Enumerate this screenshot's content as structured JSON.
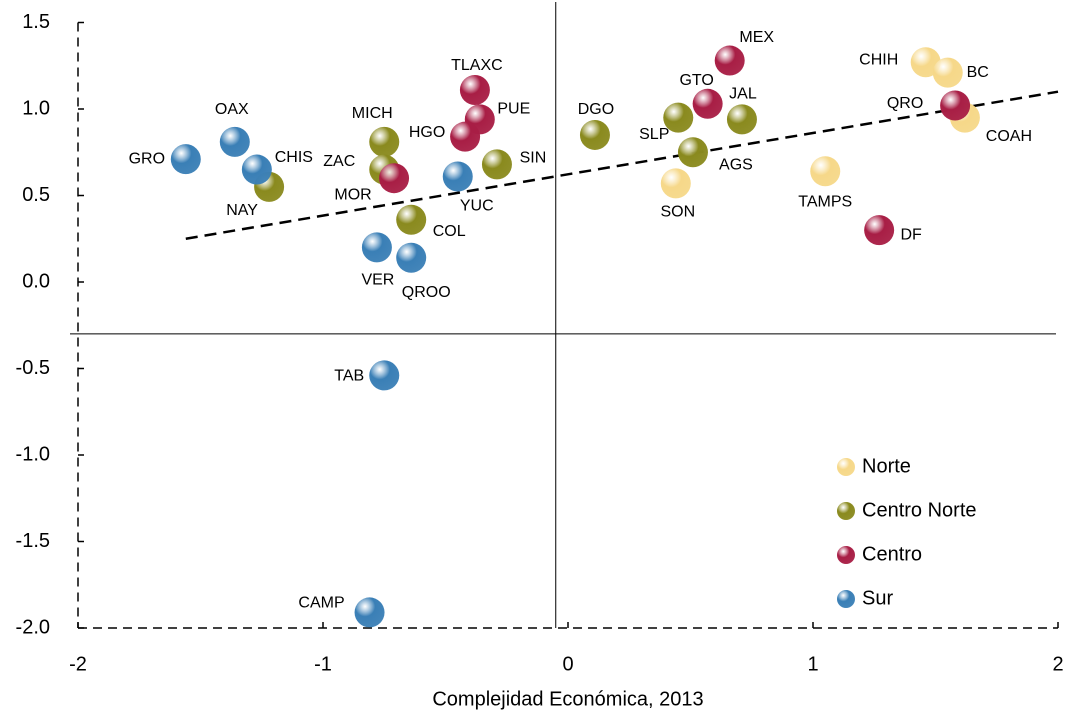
{
  "chart_data": {
    "type": "scatter",
    "x_label": "Complejidad Económica, 2013",
    "xlim": [
      -2,
      2
    ],
    "ylim": [
      -2,
      1.5
    ],
    "xticks": [
      -2,
      -1,
      0,
      1,
      2
    ],
    "yticks": [
      1.5,
      {
        "value": 1,
        "label": "1.0"
      },
      0.5,
      {
        "value": 0,
        "label": "0.0"
      },
      -0.5,
      {
        "value": -1,
        "label": "-1.0"
      },
      -1.5,
      {
        "value": -2,
        "label": "-2.0"
      }
    ],
    "crosshair": {
      "x": -0.05,
      "y": -0.3
    },
    "trendline": {
      "x": [
        -1.56,
        2
      ],
      "y": [
        0.25,
        1.1
      ]
    },
    "legend": "lower right",
    "series": [
      {
        "name": "Norte",
        "color": "#f6d889",
        "labels": [
          "CHIH",
          "BC",
          "COAH",
          "SON",
          "TAMPS"
        ],
        "x": [
          1.46,
          1.55,
          1.62,
          0.44,
          1.05
        ],
        "values": [
          1.27,
          1.21,
          0.95,
          0.57,
          0.64
        ]
      },
      {
        "name": "Centro Norte",
        "color": "#8a8a1e",
        "labels": [
          "MICH",
          "ZAC",
          "NAY",
          "COL",
          "SIN",
          "DGO",
          "SLP",
          "AGS",
          "JAL"
        ],
        "x": [
          -0.75,
          -0.75,
          -1.22,
          -0.64,
          -0.29,
          0.11,
          0.45,
          0.51,
          0.71
        ],
        "values": [
          0.81,
          0.65,
          0.55,
          0.36,
          0.68,
          0.85,
          0.95,
          0.75,
          0.94
        ]
      },
      {
        "name": "Centro",
        "color": "#a81e45",
        "labels": [
          "TLAXC",
          "PUE",
          "HGO",
          "MOR",
          "GTO",
          "MEX",
          "QRO",
          "DF"
        ],
        "x": [
          -0.38,
          -0.36,
          -0.42,
          -0.71,
          0.57,
          0.66,
          1.58,
          1.27
        ],
        "values": [
          1.11,
          0.94,
          0.84,
          0.6,
          1.03,
          1.28,
          1.02,
          0.3
        ]
      },
      {
        "name": "Sur",
        "color": "#3a7fb6",
        "labels": [
          "GRO",
          "OAX",
          "CHIS",
          "YUC",
          "VER",
          "QROO",
          "TAB",
          "CAMP"
        ],
        "x": [
          -1.56,
          -1.36,
          -1.27,
          -0.45,
          -0.78,
          -0.64,
          -0.75,
          -0.81
        ],
        "values": [
          0.71,
          0.81,
          0.65,
          0.61,
          0.2,
          0.14,
          -0.54,
          -1.91
        ]
      }
    ]
  }
}
